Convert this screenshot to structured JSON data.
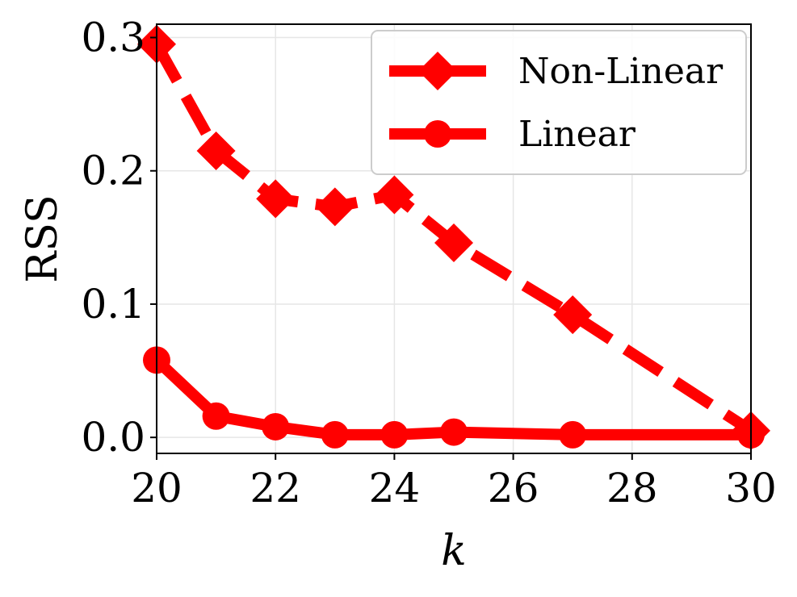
{
  "chart_data": {
    "type": "line",
    "title": "",
    "xlabel": "k",
    "ylabel": "RSS",
    "xlim": [
      20,
      30
    ],
    "ylim": [
      -0.012,
      0.31
    ],
    "xticks": [
      20,
      22,
      24,
      26,
      28,
      30
    ],
    "yticks": [
      0.0,
      0.1,
      0.2,
      0.3
    ],
    "xtick_labels": [
      "20",
      "22",
      "24",
      "26",
      "28",
      "30"
    ],
    "ytick_labels": [
      "0.0",
      "0.1",
      "0.2",
      "0.3"
    ],
    "grid": true,
    "legend_position": "top-right",
    "series": [
      {
        "name": "Non-Linear",
        "color": "#ff0000",
        "line_style": "dashed",
        "marker": "diamond",
        "x": [
          20,
          21,
          22,
          23,
          24,
          25,
          27,
          30
        ],
        "y": [
          0.295,
          0.215,
          0.179,
          0.173,
          0.182,
          0.146,
          0.092,
          0.005
        ]
      },
      {
        "name": "Linear",
        "color": "#ff0000",
        "line_style": "solid",
        "marker": "circle",
        "x": [
          20,
          21,
          22,
          23,
          24,
          25,
          27,
          30
        ],
        "y": [
          0.058,
          0.016,
          0.008,
          0.002,
          0.002,
          0.004,
          0.002,
          0.002
        ]
      }
    ]
  }
}
